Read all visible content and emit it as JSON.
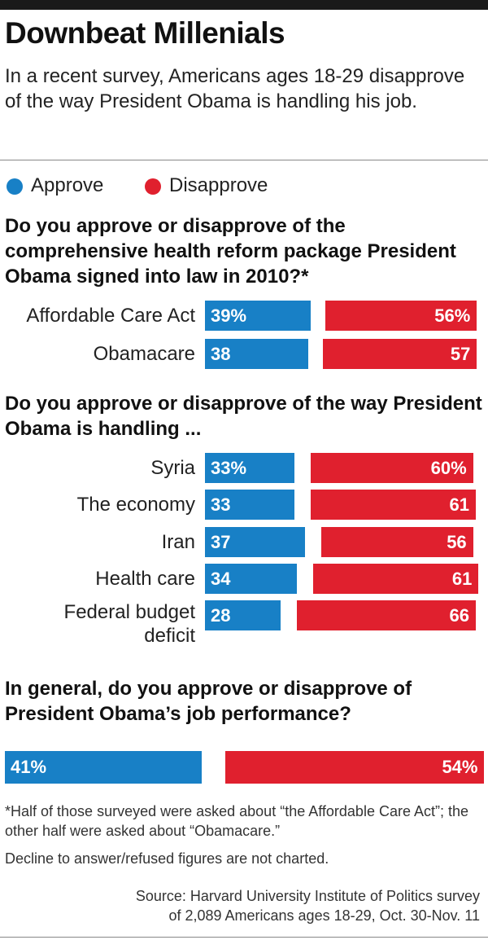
{
  "header": {
    "title": "Downbeat Millenials",
    "subtitle": "In a recent survey, Americans ages 18-29 disapprove of the way President Obama is handling his job."
  },
  "legend": {
    "approve": "Approve",
    "disapprove": "Disapprove"
  },
  "colors": {
    "approve": "#1880c6",
    "disapprove": "#e0202e"
  },
  "chart_data": [
    {
      "type": "bar",
      "title": "Do you approve or disapprove of the comprehensive health reform package President Obama signed into law in 2010?*",
      "categories": [
        "Affordable Care Act",
        "Obamacare"
      ],
      "series": [
        {
          "name": "Approve",
          "values": [
            39,
            38
          ],
          "labels": [
            "39%",
            "38"
          ]
        },
        {
          "name": "Disapprove",
          "values": [
            56,
            57
          ],
          "labels": [
            "56%",
            "57"
          ]
        }
      ]
    },
    {
      "type": "bar",
      "title": "Do you approve or disapprove of the way President Obama is handling ...",
      "categories": [
        "Syria",
        "The economy",
        "Iran",
        "Health care",
        "Federal budget deficit"
      ],
      "series": [
        {
          "name": "Approve",
          "values": [
            33,
            33,
            37,
            34,
            28
          ],
          "labels": [
            "33%",
            "33",
            "37",
            "34",
            "28"
          ]
        },
        {
          "name": "Disapprove",
          "values": [
            60,
            61,
            56,
            61,
            66
          ],
          "labels": [
            "60%",
            "61",
            "56",
            "61",
            "66"
          ]
        }
      ]
    },
    {
      "type": "bar",
      "title": "In general, do you approve or disapprove of President Obama’s job performance?",
      "categories": [
        ""
      ],
      "series": [
        {
          "name": "Approve",
          "values": [
            41
          ],
          "labels": [
            "41%"
          ]
        },
        {
          "name": "Disapprove",
          "values": [
            54
          ],
          "labels": [
            "54%"
          ]
        }
      ]
    }
  ],
  "footnotes": {
    "asterisk": "*Half of those surveyed were asked about “the Affordable Care Act”; the other half were asked about “Obamacare.”",
    "decline": "Decline to answer/refused figures are not charted.",
    "source_line1": "Source: Harvard University Institute of Politics survey",
    "source_line2": "of 2,089 Americans ages 18-29, Oct. 30-Nov. 11"
  }
}
